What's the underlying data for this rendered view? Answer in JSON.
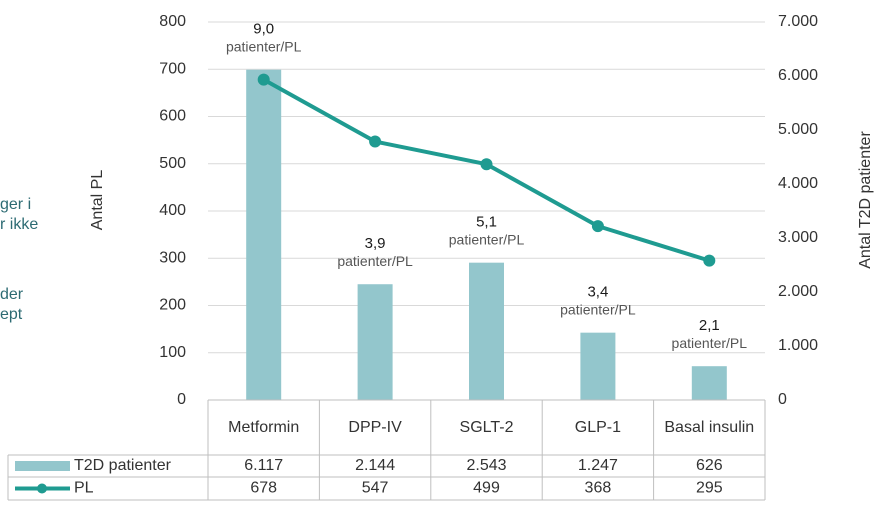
{
  "chart_data": {
    "type": "bar_line",
    "categories": [
      "Metformin",
      "DPP-IV",
      "SGLT-2",
      "GLP-1",
      "Basal insulin"
    ],
    "series": [
      {
        "name": "T2D patienter",
        "type": "bar",
        "color": "#93c6cc",
        "axis": "y2",
        "values": [
          6117,
          2144,
          2543,
          1247,
          626
        ],
        "value_labels": [
          "6.117",
          "2.144",
          "2.543",
          "1.247",
          "626"
        ]
      },
      {
        "name": "PL",
        "type": "line",
        "color": "#1f9b91",
        "axis": "y",
        "values": [
          678,
          547,
          499,
          368,
          295
        ]
      }
    ],
    "ylabel": "Antal PL",
    "y2label": "Antal T2D patienter",
    "ylim": [
      0,
      800
    ],
    "yticks": [
      0,
      100,
      200,
      300,
      400,
      500,
      600,
      700,
      800
    ],
    "y2lim": [
      0,
      7000
    ],
    "y2ticks": [
      0,
      {
        "value": 1000,
        "label": "1.000"
      },
      {
        "value": 2000,
        "label": "2.000"
      },
      {
        "value": 3000,
        "label": "3.000"
      },
      {
        "value": 4000,
        "label": "4.000"
      },
      {
        "value": 5000,
        "label": "5.000"
      },
      {
        "value": 6000,
        "label": "6.000"
      },
      {
        "value": 7000,
        "label": "7.000"
      }
    ],
    "grid": true,
    "annotations": [
      {
        "text": "9,0",
        "subtext": "patienter/PL"
      },
      {
        "text": "3,9",
        "subtext": "patienter/PL"
      },
      {
        "text": "5,1",
        "subtext": "patienter/PL"
      },
      {
        "text": "3,4",
        "subtext": "patienter/PL"
      },
      {
        "text": "2,1",
        "subtext": "patienter/PL"
      }
    ],
    "side_text": [
      "ger i",
      "r ikke",
      "der",
      "ept"
    ]
  }
}
